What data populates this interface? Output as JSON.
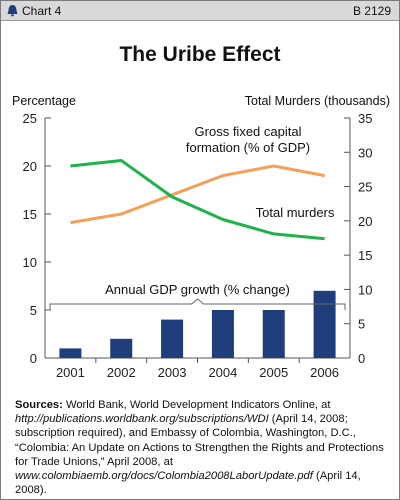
{
  "header": {
    "chart_label": "Chart 4",
    "report_id": "B 2129",
    "logo_icon": "heritage-bell-icon"
  },
  "chart_data": {
    "type": "line+bar",
    "title": "The Uribe Effect",
    "left_axis_label": "Percentage",
    "right_axis_label": "Total Murders (thousands)",
    "left_ylim": [
      0,
      25
    ],
    "left_ticks": [
      "0",
      "5",
      "10",
      "15",
      "20",
      "25"
    ],
    "right_ylim": [
      0,
      35
    ],
    "right_ticks": [
      "0",
      "5",
      "10",
      "15",
      "20",
      "25",
      "30",
      "35"
    ],
    "categories": [
      "2001",
      "2002",
      "2003",
      "2004",
      "2005",
      "2006"
    ],
    "series": [
      {
        "name": "Gross fixed capital formation (% of GDP)",
        "label_lines": [
          "Gross fixed capital",
          "formation (% of GDP)"
        ],
        "type": "line",
        "axis": "left",
        "color": "#f5a05a",
        "values": [
          14.1,
          15.0,
          17.0,
          19.0,
          20.0,
          19.0
        ]
      },
      {
        "name": "Total murders",
        "label_lines": [
          "Total murders"
        ],
        "type": "line",
        "axis": "right",
        "color": "#1fb24a",
        "values": [
          28.0,
          28.8,
          23.5,
          20.2,
          18.1,
          17.4
        ]
      },
      {
        "name": "Annual GDP growth (% change)",
        "label_lines": [
          "Annual GDP growth (% change)"
        ],
        "type": "bar",
        "axis": "left",
        "color": "#1f3d7a",
        "values": [
          1,
          2,
          4,
          5,
          5,
          7
        ]
      }
    ]
  },
  "sources": {
    "label": "Sources:",
    "p1": " World Bank, World Development Indicators Online, at ",
    "url1": "http://publications.worldbank.org/subscriptions/WDI",
    "p2": " (April 14, 2008; subscription required), and Embassy of Colombia, Washington, D.C., “Colombia: An Update on Actions to Strengthen the Rights and Protections for Trade Unions,” April 2008, at ",
    "url2": "www.colombiaemb.org/docs/Colombia2008LaborUpdate.pdf",
    "p3": " (April 14, 2008)."
  }
}
